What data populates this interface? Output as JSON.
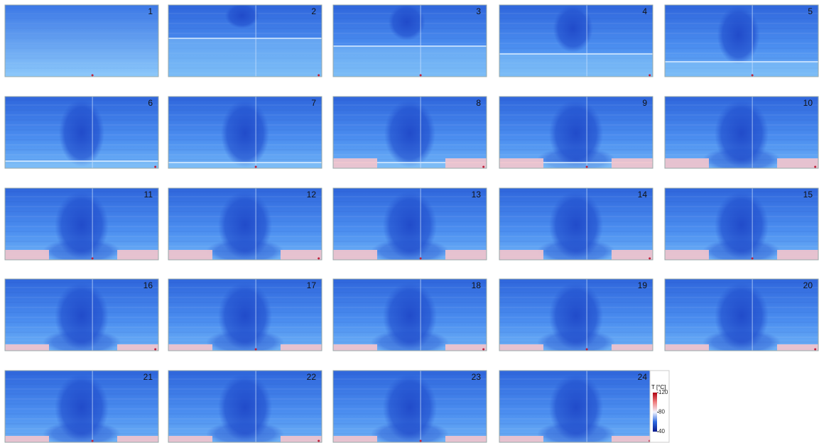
{
  "panels": [
    "1",
    "2",
    "3",
    "4",
    "5",
    "6",
    "7",
    "8",
    "9",
    "10",
    "11",
    "12",
    "13",
    "14",
    "15",
    "16",
    "17",
    "18",
    "19",
    "20",
    "21",
    "22",
    "23",
    "24"
  ],
  "colorbar": {
    "title": "T [°C]",
    "range": [
      40,
      120
    ],
    "ticks": [
      40,
      80,
      120
    ]
  }
}
